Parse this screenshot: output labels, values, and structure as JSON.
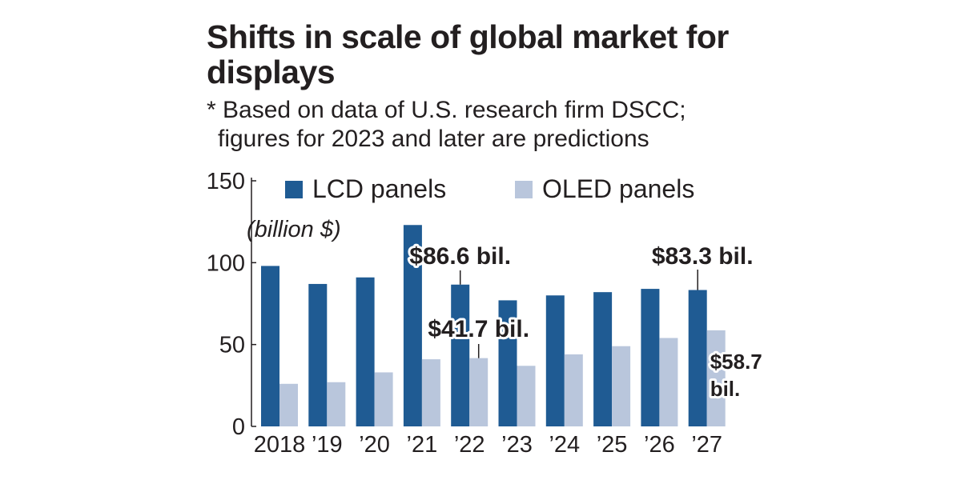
{
  "title": "Shifts in scale of global market for displays",
  "subtitle_line1": "* Based on data of U.S. research firm DSCC;",
  "subtitle_line2": "figures for 2023 and later are predictions",
  "colors": {
    "lcd": "#1f5b93",
    "oled": "#b9c6dc",
    "text": "#231f20"
  },
  "chart_data": {
    "type": "bar",
    "categories": [
      "2018",
      "’19",
      "’20",
      "’21",
      "’22",
      "’23",
      "’24",
      "’25",
      "’26",
      "’27"
    ],
    "series": [
      {
        "name": "LCD panels",
        "values": [
          98,
          87,
          91,
          123,
          86.6,
          77,
          80,
          82,
          84,
          83.3
        ]
      },
      {
        "name": "OLED panels",
        "values": [
          26,
          27,
          33,
          41,
          41.7,
          37,
          44,
          49,
          54,
          58.7
        ]
      }
    ],
    "ylabel": "(billion $)",
    "ylim": [
      0,
      150
    ],
    "yticks": [
      0,
      50,
      100,
      150
    ],
    "legend_position": "top",
    "annotations": [
      {
        "text": "$86.6 bil.",
        "series": "LCD panels",
        "category": "’22"
      },
      {
        "text": "$41.7 bil.",
        "series": "OLED panels",
        "category": "’22"
      },
      {
        "text": "$83.3 bil.",
        "series": "LCD panels",
        "category": "’27"
      },
      {
        "text": "$58.7 bil.",
        "series": "OLED panels",
        "category": "’27"
      }
    ]
  }
}
